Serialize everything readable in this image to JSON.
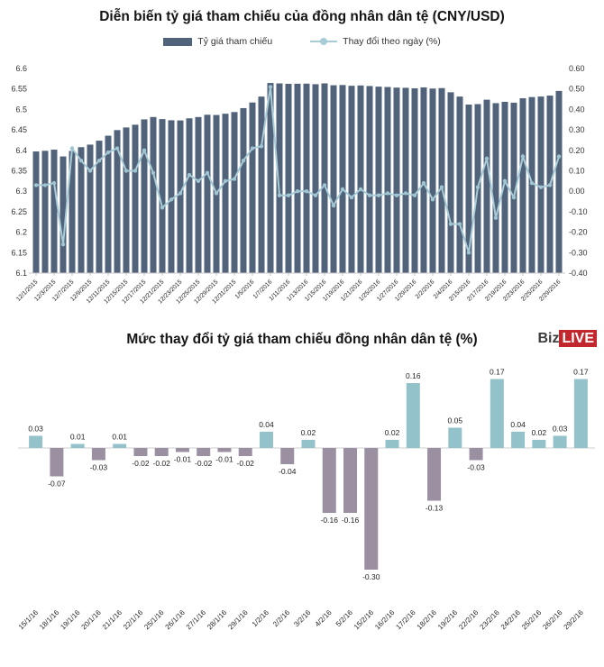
{
  "logo": {
    "text_black": "Biz",
    "text_live": "LIVE",
    "live_bg": "#c1272d"
  },
  "chart_data": [
    {
      "id": "cny-reference-rate",
      "type": "bar+line",
      "title": "Diễn biến tỷ giá tham chiếu của đồng nhân dân tệ (CNY/USD)",
      "legend": [
        {
          "label": "Tỷ giá tham chiếu",
          "marker": "bar",
          "color": "#51637a"
        },
        {
          "label": "Thay đổi theo ngày (%)",
          "marker": "line-dot",
          "color": "#a7cbd7"
        }
      ],
      "legend_position": "top",
      "grid": false,
      "label_every": 2,
      "categories": [
        "12/1/2015",
        "12/2/2015",
        "12/3/2015",
        "12/4/2015",
        "12/7/2015",
        "12/8/2015",
        "12/9/2015",
        "12/10/2015",
        "12/11/2015",
        "12/14/2015",
        "12/15/2015",
        "12/16/2015",
        "12/17/2015",
        "12/18/2015",
        "12/21/2015",
        "12/22/2015",
        "12/23/2015",
        "12/24/2015",
        "12/25/2015",
        "12/28/2015",
        "12/29/2015",
        "12/30/2015",
        "12/31/2015",
        "1/4/2016",
        "1/5/2016",
        "1/6/2016",
        "1/7/2016",
        "1/8/2016",
        "1/11/2016",
        "1/12/2016",
        "1/13/2016",
        "1/14/2016",
        "1/15/2016",
        "1/18/2016",
        "1/19/2016",
        "1/20/2016",
        "1/21/2016",
        "1/22/2016",
        "1/25/2016",
        "1/26/2016",
        "1/27/2016",
        "1/28/2016",
        "1/29/2016",
        "2/1/2016",
        "2/2/2016",
        "2/3/2016",
        "2/4/2016",
        "2/5/2016",
        "2/15/2016",
        "2/16/2016",
        "2/17/2016",
        "2/18/2016",
        "2/19/2016",
        "2/22/2016",
        "2/23/2016",
        "2/24/2016",
        "2/25/2016",
        "2/26/2016",
        "2/29/2016"
      ],
      "series": [
        {
          "name": "Tỷ giá tham chiếu",
          "type": "bar",
          "axis": "left",
          "color": "#51637a",
          "values": [
            6.3973,
            6.3989,
            6.4017,
            6.3851,
            6.3985,
            6.4078,
            6.414,
            6.4236,
            6.4358,
            6.4495,
            6.4559,
            6.4626,
            6.4757,
            6.4814,
            6.4764,
            6.4735,
            6.4731,
            6.4783,
            6.4814,
            6.487,
            6.4864,
            6.4895,
            6.4936,
            6.5032,
            6.5169,
            6.5314,
            6.5646,
            6.5636,
            6.5626,
            6.5628,
            6.563,
            6.5616,
            6.5637,
            6.559,
            6.5596,
            6.5578,
            6.5585,
            6.5572,
            6.5557,
            6.5548,
            6.5533,
            6.5528,
            6.5516,
            6.5539,
            6.551,
            6.5521,
            6.5419,
            6.5314,
            6.5118,
            6.513,
            6.5237,
            6.5153,
            6.5186,
            6.5165,
            6.5273,
            6.5302,
            6.5315,
            6.5338,
            6.5452
          ]
        },
        {
          "name": "Thay đổi theo ngày (%)",
          "type": "line",
          "axis": "right",
          "color": "#a7cbd7",
          "marker_color": "#9fc5d2",
          "values": [
            0.03,
            0.03,
            0.04,
            -0.26,
            0.21,
            0.15,
            0.1,
            0.15,
            0.19,
            0.21,
            0.1,
            0.1,
            0.2,
            0.09,
            -0.08,
            -0.04,
            -0.01,
            0.08,
            0.05,
            0.09,
            -0.01,
            0.05,
            0.06,
            0.15,
            0.21,
            0.22,
            0.51,
            -0.02,
            -0.02,
            0.0,
            0.0,
            -0.02,
            0.03,
            -0.07,
            0.01,
            -0.03,
            0.01,
            -0.02,
            -0.02,
            -0.01,
            -0.02,
            -0.01,
            -0.02,
            0.04,
            -0.04,
            0.02,
            -0.16,
            -0.16,
            -0.3,
            0.02,
            0.16,
            -0.13,
            0.05,
            -0.03,
            0.17,
            0.04,
            0.02,
            0.03,
            0.17
          ]
        }
      ],
      "left_axis": {
        "min": 6.1,
        "max": 6.6,
        "tick_labels": [
          "6.6",
          "6.55",
          "6.5",
          "6.45",
          "6.4",
          "6.35",
          "6.3",
          "6.25",
          "6.2",
          "6.15",
          "6.1"
        ]
      },
      "right_axis": {
        "min": -0.4,
        "max": 0.6,
        "tick_labels": [
          "0.60",
          "0.50",
          "0.40",
          "0.30",
          "0.20",
          "0.10",
          "0.00",
          "-0.10",
          "-0.20",
          "-0.30",
          "-0.40"
        ]
      }
    },
    {
      "id": "daily-change",
      "type": "bar",
      "title": "Mức thay đổi tỷ giá tham chiếu đồng nhân dân tệ (%)",
      "grid": false,
      "data_labels": true,
      "ylim": [
        -0.35,
        0.22
      ],
      "positive_color": "#93c2ca",
      "negative_color": "#9b8fa2",
      "categories": [
        "15/1/16",
        "18/1/16",
        "19/1/16",
        "20/1/16",
        "21/1/16",
        "22/1/16",
        "25/1/16",
        "26/1/16",
        "27/1/16",
        "28/1/16",
        "29/1/16",
        "1/2/16",
        "2/2/16",
        "3/2/16",
        "4/2/16",
        "5/2/16",
        "15/2/16",
        "16/2/16",
        "17/2/16",
        "18/2/16",
        "19/2/16",
        "22/2/16",
        "23/2/16",
        "24/2/16",
        "25/2/16",
        "26/2/16",
        "29/2/16"
      ],
      "values": [
        0.03,
        -0.07,
        0.01,
        -0.03,
        0.01,
        -0.02,
        -0.02,
        -0.01,
        -0.02,
        -0.01,
        -0.02,
        0.04,
        -0.04,
        0.02,
        -0.16,
        -0.16,
        -0.3,
        0.02,
        0.16,
        -0.13,
        0.05,
        -0.03,
        0.17,
        0.04,
        0.02,
        0.03,
        0.17
      ]
    }
  ]
}
